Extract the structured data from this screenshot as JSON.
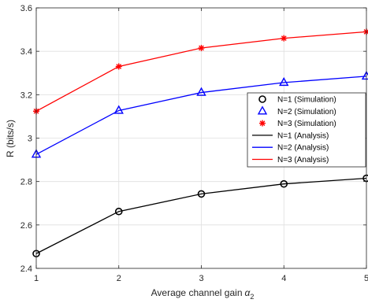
{
  "chart_data": {
    "type": "line",
    "title": "",
    "xlabel": "Average channel gain",
    "xlabel_symbol": "α",
    "xlabel_subscript": "2",
    "ylabel": "R (bits/s)",
    "x": [
      1,
      2,
      3,
      4,
      5
    ],
    "xlim": [
      1,
      5
    ],
    "ylim": [
      2.4,
      3.6
    ],
    "xticks": [
      1,
      2,
      3,
      4,
      5
    ],
    "yticks": [
      2.4,
      2.6,
      2.8,
      3,
      3.2,
      3.4,
      3.6
    ],
    "xtick_labels": [
      "1",
      "2",
      "3",
      "4",
      "5"
    ],
    "ytick_labels": [
      "2.4",
      "2.6",
      "2.8",
      "3",
      "3.2",
      "3.4",
      "3.6"
    ],
    "grid": true,
    "legend_position": "right",
    "series": [
      {
        "name": "N=1 (Simulation)",
        "kind": "marker",
        "marker": "circle",
        "color": "#000000",
        "values": [
          2.468,
          2.662,
          2.743,
          2.789,
          2.815
        ]
      },
      {
        "name": "N=2 (Simulation)",
        "kind": "marker",
        "marker": "triangle",
        "color": "#0000ff",
        "values": [
          2.925,
          3.127,
          3.21,
          3.256,
          3.285
        ]
      },
      {
        "name": "N=3 (Simulation)",
        "kind": "marker",
        "marker": "asterisk",
        "color": "#ff0000",
        "values": [
          3.124,
          3.33,
          3.415,
          3.46,
          3.49
        ]
      },
      {
        "name": "N=1 (Analysis)",
        "kind": "line",
        "color": "#000000",
        "values": [
          2.468,
          2.662,
          2.743,
          2.789,
          2.815
        ]
      },
      {
        "name": "N=2 (Analysis)",
        "kind": "line",
        "color": "#0000ff",
        "values": [
          2.925,
          3.127,
          3.21,
          3.256,
          3.285
        ]
      },
      {
        "name": "N=3 (Analysis)",
        "kind": "line",
        "color": "#ff0000",
        "values": [
          3.124,
          3.33,
          3.415,
          3.46,
          3.49
        ]
      }
    ]
  }
}
